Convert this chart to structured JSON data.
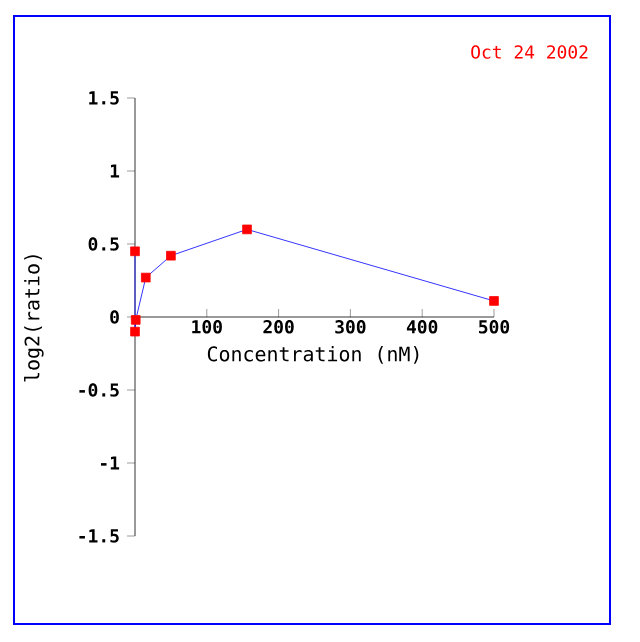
{
  "chart_data": {
    "type": "line",
    "xlabel": "Concentration (nM)",
    "ylabel": "log2(ratio)",
    "annotations": [
      "Oct 24 2002"
    ],
    "x": [
      0,
      0,
      1,
      15,
      50,
      156,
      500
    ],
    "series": [
      {
        "color": "#0000ff",
        "colors": [
          "#ff0000",
          "#ff0000",
          "#ff0000",
          "#ff0000",
          "#ff0000",
          "#ff0000",
          "#ff0000"
        ],
        "values": [
          0.45,
          -0.1,
          -0.02,
          0.27,
          0.42,
          0.6,
          0.11
        ]
      }
    ],
    "marker": "square",
    "xlim": [
      0,
      500
    ],
    "ylim": [
      -1.5,
      1.5
    ],
    "xticks": [
      100,
      200,
      300,
      400,
      500
    ],
    "yticks": [
      -1.5,
      -1,
      -0.5,
      0,
      0.5,
      1,
      1.5
    ]
  }
}
